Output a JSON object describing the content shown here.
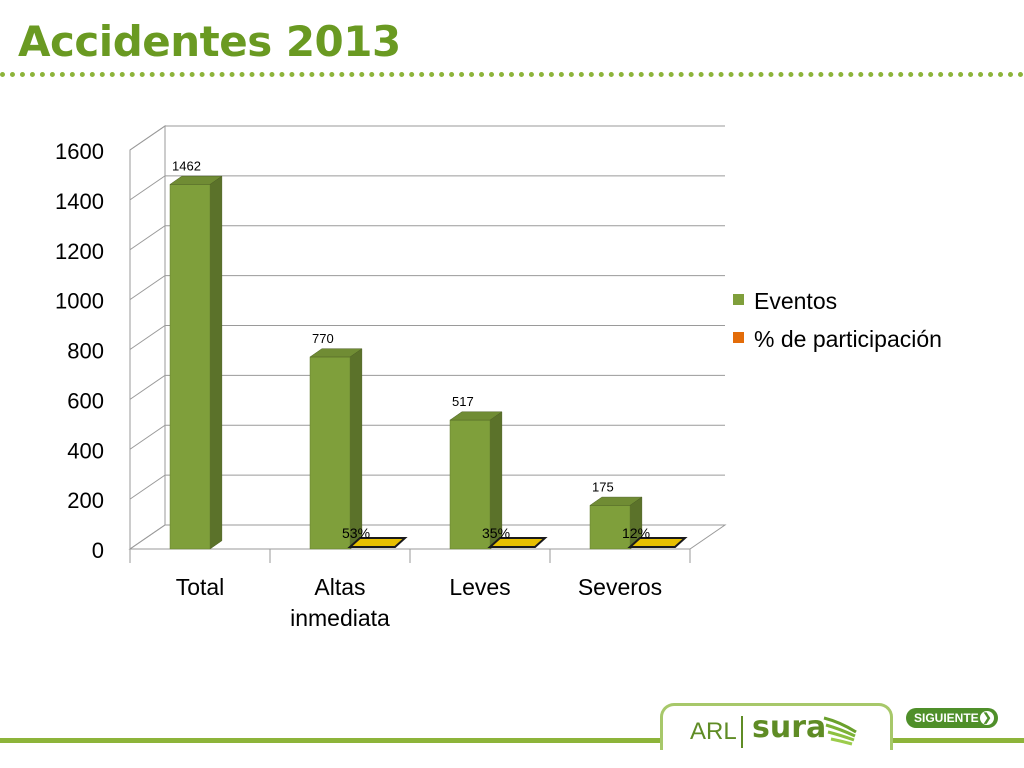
{
  "slide": {
    "title": "Accidentes 2013"
  },
  "chart_data": {
    "type": "bar",
    "title": "",
    "xlabel": "",
    "ylabel": "",
    "categories": [
      "Total",
      "Altas inmediata",
      "Leves",
      "Severos"
    ],
    "category_lines": [
      [
        "Total"
      ],
      [
        "Altas",
        "inmediata"
      ],
      [
        "Leves"
      ],
      [
        "Severos"
      ]
    ],
    "ylim": [
      0,
      1600
    ],
    "yticks": [
      0,
      200,
      400,
      600,
      800,
      1000,
      1200,
      1400,
      1600
    ],
    "grid": true,
    "legend_position": "right",
    "three_d": true,
    "series": [
      {
        "name": "Eventos",
        "color": "#7f9f3b",
        "values": [
          1462,
          770,
          517,
          175
        ],
        "labels": [
          "1462",
          "770",
          "517",
          "175"
        ]
      },
      {
        "name": "% de participación",
        "color": "#e36c09",
        "bar_color": "#e8c000",
        "values": [
          null,
          53,
          35,
          12
        ],
        "labels": [
          "",
          "53%",
          "35%",
          "12%"
        ]
      }
    ]
  },
  "footer": {
    "logo_arl": "ARL",
    "logo_sura": "sura",
    "next_button": "SIGUIENTE"
  }
}
